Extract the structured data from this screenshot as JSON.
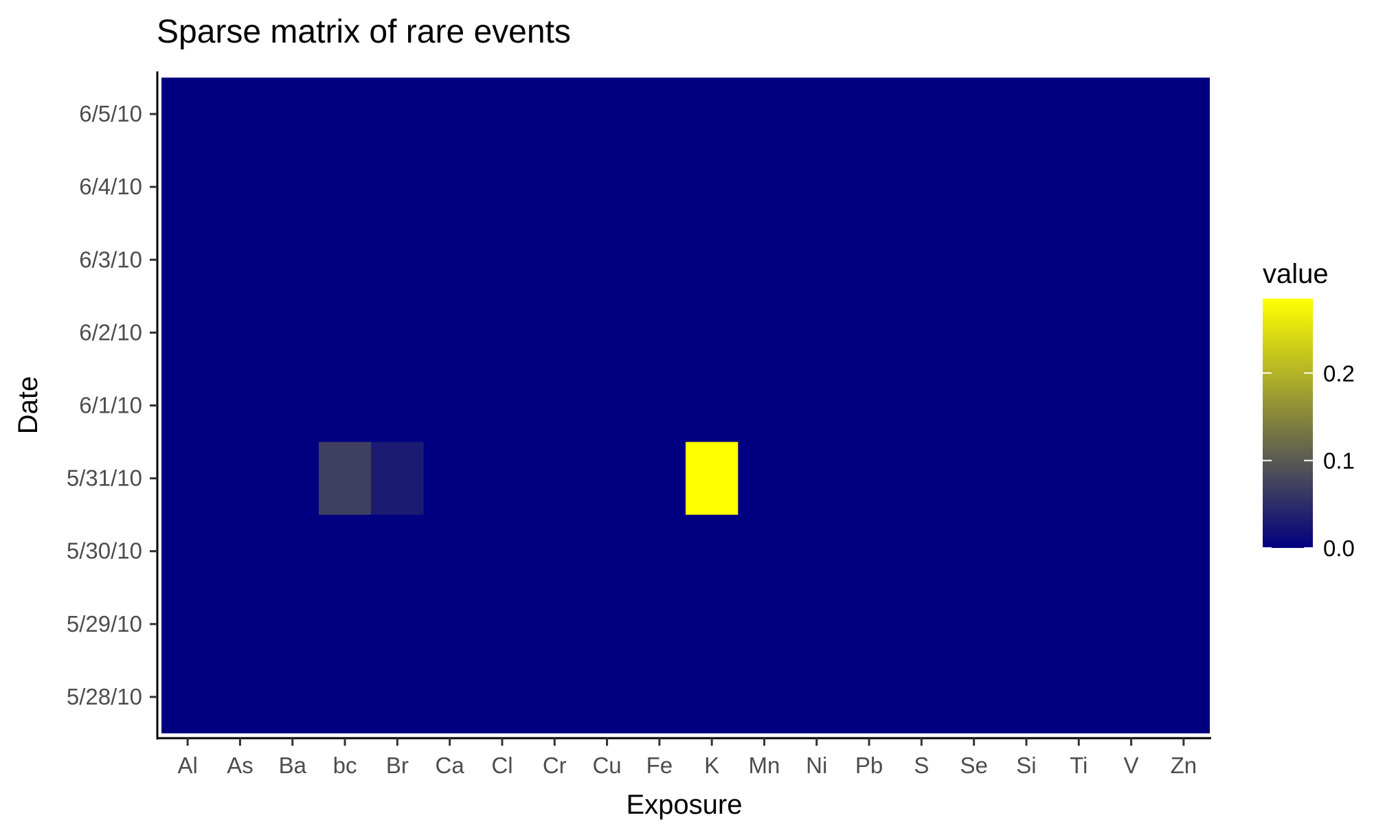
{
  "chart_data": {
    "type": "heatmap",
    "title": "Sparse matrix of rare events",
    "xlabel": "Exposure",
    "ylabel": "Date",
    "x_categories": [
      "Al",
      "As",
      "Ba",
      "bc",
      "Br",
      "Ca",
      "Cl",
      "Cr",
      "Cu",
      "Fe",
      "K",
      "Mn",
      "Ni",
      "Pb",
      "S",
      "Se",
      "Si",
      "Ti",
      "V",
      "Zn"
    ],
    "y_categories": [
      "5/28/10",
      "5/29/10",
      "5/30/10",
      "5/31/10",
      "6/1/10",
      "6/2/10",
      "6/3/10",
      "6/4/10",
      "6/5/10"
    ],
    "default_value": 0,
    "nonzero_cells": [
      {
        "x": "bc",
        "y": "5/31/10",
        "value": 0.07
      },
      {
        "x": "Br",
        "y": "5/31/10",
        "value": 0.03
      },
      {
        "x": "K",
        "y": "5/31/10",
        "value": 0.285
      }
    ],
    "color_scale": {
      "low": "#000080",
      "high": "#FFFF00",
      "range": [
        0,
        0.285
      ]
    },
    "legend": {
      "title": "value",
      "breaks": [
        0.0,
        0.1,
        0.2
      ],
      "break_labels": [
        "0.0",
        "0.1",
        "0.2"
      ],
      "placement": "right"
    },
    "grid": false
  }
}
